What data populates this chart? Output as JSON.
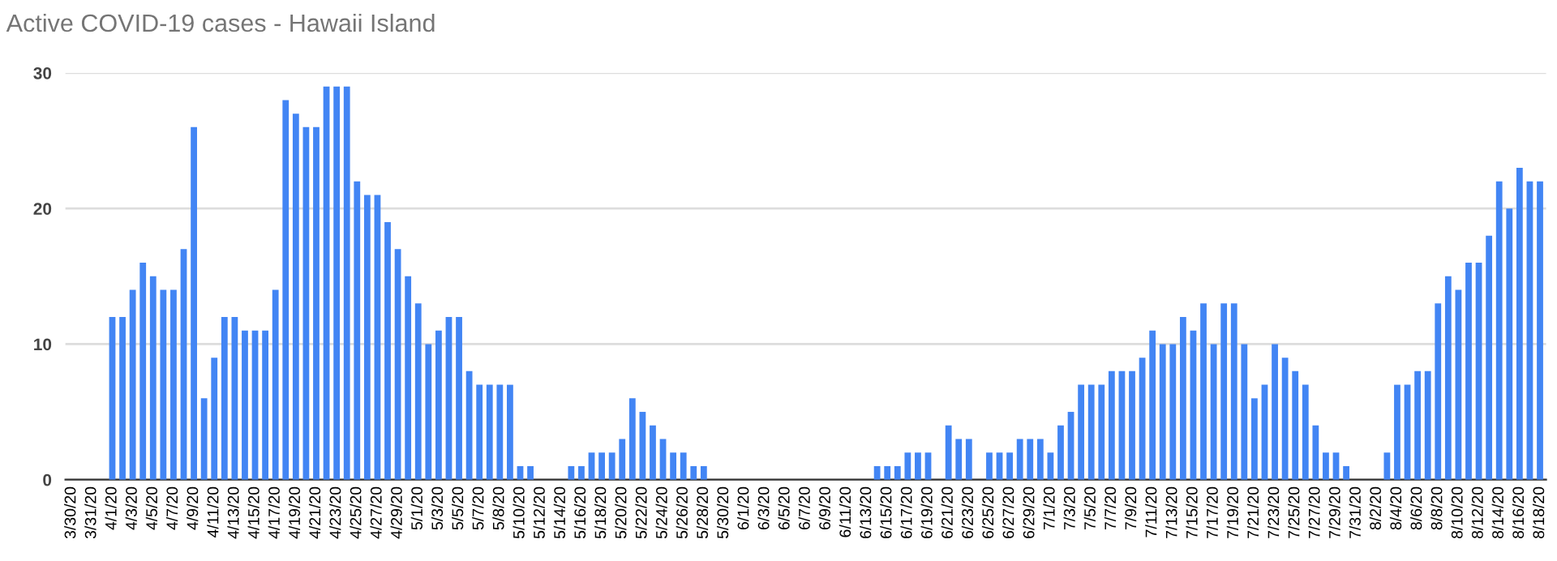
{
  "chart_data": {
    "type": "bar",
    "title": "Active COVID-19 cases - Hawaii Island",
    "categories": [
      "3/30/20",
      null,
      "3/31/20",
      null,
      "4/1/20",
      null,
      "4/3/20",
      null,
      "4/5/20",
      null,
      "4/7/20",
      null,
      "4/9/20",
      null,
      "4/11/20",
      null,
      "4/13/20",
      null,
      "4/15/20",
      null,
      "4/17/20",
      null,
      "4/19/20",
      null,
      "4/21/20",
      null,
      "4/23/20",
      null,
      "4/25/20",
      null,
      "4/27/20",
      null,
      "4/29/20",
      null,
      "5/1/20",
      null,
      "5/3/20",
      null,
      "5/5/20",
      null,
      "5/7/20",
      null,
      "5/8/20",
      null,
      "5/10/20",
      null,
      "5/12/20",
      null,
      "5/14/20",
      null,
      "5/16/20",
      null,
      "5/18/20",
      null,
      "5/20/20",
      null,
      "5/22/20",
      null,
      "5/24/20",
      null,
      "5/26/20",
      null,
      "5/28/20",
      null,
      "5/30/20",
      null,
      "6/1/20",
      null,
      "6/3/20",
      null,
      "6/5/20",
      null,
      "6/7/20",
      null,
      "6/9/20",
      null,
      "6/11/20",
      null,
      "6/13/20",
      null,
      "6/15/20",
      null,
      "6/17/20",
      null,
      "6/19/20",
      null,
      "6/21/20",
      null,
      "6/23/20",
      null,
      "6/25/20",
      null,
      "6/27/20",
      null,
      "6/29/20",
      null,
      "7/1/20",
      null,
      "7/3/20",
      null,
      "7/5/20",
      null,
      "7/7/20",
      null,
      "7/9/20",
      null,
      "7/11/20",
      null,
      "7/13/20",
      null,
      "7/15/20",
      null,
      "7/17/20",
      null,
      "7/19/20",
      null,
      "7/21/20",
      null,
      "7/23/20",
      null,
      "7/25/20",
      null,
      "7/27/20",
      null,
      "7/29/20",
      null,
      "7/31/20",
      null,
      "8/2/20",
      null,
      "8/4/20",
      null,
      "8/6/20",
      null,
      "8/8/20",
      null,
      "8/10/20",
      null,
      "8/12/20",
      null,
      "8/14/20",
      null,
      "8/16/20",
      null,
      "8/18/20"
    ],
    "values": [
      0,
      0,
      0,
      0,
      12,
      12,
      14,
      16,
      15,
      14,
      14,
      17,
      26,
      6,
      9,
      12,
      12,
      11,
      11,
      11,
      14,
      28,
      27,
      26,
      26,
      29,
      29,
      29,
      22,
      21,
      21,
      19,
      17,
      15,
      13,
      10,
      11,
      12,
      12,
      8,
      7,
      7,
      7,
      7,
      1,
      1,
      0,
      0,
      0,
      1,
      1,
      2,
      2,
      2,
      3,
      6,
      5,
      4,
      3,
      2,
      2,
      1,
      1,
      0,
      0,
      0,
      0,
      0,
      0,
      0,
      0,
      0,
      0,
      0,
      0,
      0,
      0,
      0,
      0,
      1,
      1,
      1,
      2,
      2,
      2,
      0,
      4,
      3,
      3,
      0,
      2,
      2,
      2,
      3,
      3,
      3,
      2,
      4,
      5,
      7,
      7,
      7,
      8,
      8,
      8,
      9,
      11,
      10,
      10,
      12,
      11,
      13,
      10,
      13,
      13,
      10,
      6,
      7,
      10,
      9,
      8,
      7,
      4,
      2,
      2,
      1,
      0,
      0,
      0,
      2,
      7,
      7,
      8,
      8,
      13,
      15,
      14,
      16,
      16,
      18,
      22,
      20,
      23,
      22,
      22
    ],
    "color": "#4285f4",
    "ylim": [
      0,
      30
    ],
    "yticks": [
      0,
      10,
      20,
      30
    ],
    "grid": "y"
  }
}
